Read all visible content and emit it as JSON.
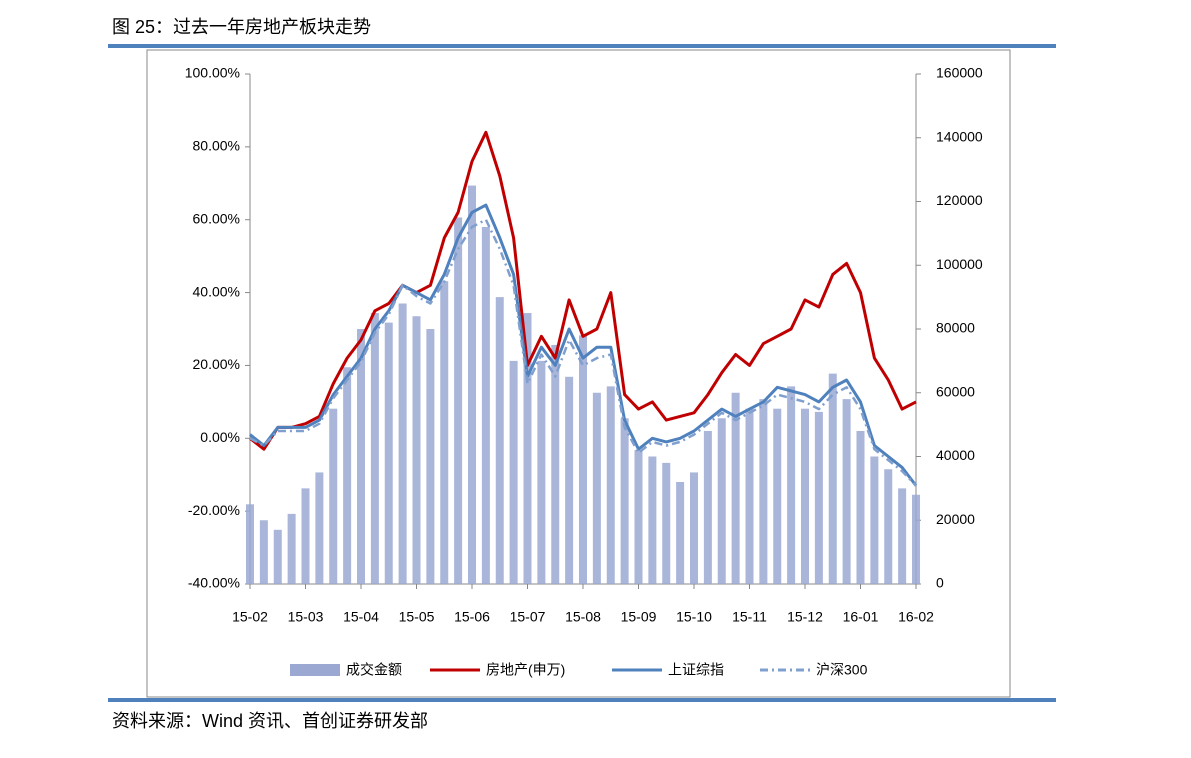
{
  "chart_data": {
    "type": "combo",
    "title": "图 25：过去一年房地产板块走势",
    "source": "资料来源：Wind 资讯、首创证券研发部",
    "categories": [
      "15-02",
      null,
      null,
      null,
      "15-03",
      null,
      null,
      null,
      "15-04",
      null,
      null,
      null,
      "15-05",
      null,
      null,
      null,
      "15-06",
      null,
      null,
      null,
      "15-07",
      null,
      null,
      null,
      "15-08",
      null,
      null,
      null,
      "15-09",
      null,
      null,
      null,
      "15-10",
      null,
      null,
      null,
      "15-11",
      null,
      null,
      null,
      "15-12",
      null,
      null,
      null,
      "16-01",
      null,
      null,
      null,
      "16-02"
    ],
    "series": [
      {
        "name": "成交金额",
        "type": "bar",
        "axis": "y2",
        "color": "#9aa8d2",
        "values": [
          25000,
          20000,
          17000,
          22000,
          30000,
          35000,
          55000,
          68000,
          80000,
          85000,
          82000,
          88000,
          84000,
          80000,
          95000,
          115000,
          125000,
          112000,
          90000,
          70000,
          85000,
          70000,
          75000,
          65000,
          78000,
          60000,
          62000,
          52000,
          42000,
          40000,
          38000,
          32000,
          35000,
          48000,
          52000,
          60000,
          55000,
          58000,
          55000,
          62000,
          55000,
          54000,
          66000,
          58000,
          48000,
          40000,
          36000,
          30000,
          28000
        ]
      },
      {
        "name": "房地产(申万)",
        "type": "line",
        "color": "#c00000",
        "line_style": "solid",
        "values": [
          0,
          -3,
          3,
          3,
          4,
          6,
          15,
          22,
          27,
          35,
          37,
          42,
          40,
          42,
          55,
          62,
          76,
          84,
          72,
          55,
          20,
          28,
          22,
          38,
          28,
          30,
          40,
          12,
          8,
          10,
          5,
          6,
          7,
          12,
          18,
          23,
          20,
          26,
          28,
          30,
          38,
          36,
          45,
          48,
          40,
          22,
          16,
          8,
          10
        ]
      },
      {
        "name": "上证综指",
        "type": "line",
        "color": "#4f81bd",
        "line_style": "solid",
        "values": [
          1,
          -2,
          3,
          3,
          3,
          5,
          12,
          17,
          22,
          30,
          35,
          42,
          40,
          38,
          45,
          55,
          62,
          64,
          55,
          45,
          17,
          25,
          20,
          30,
          22,
          25,
          25,
          5,
          -3,
          0,
          -1,
          0,
          2,
          5,
          8,
          6,
          8,
          10,
          14,
          13,
          12,
          10,
          14,
          16,
          10,
          -2,
          -5,
          -8,
          -13
        ]
      },
      {
        "name": "沪深300",
        "type": "line",
        "color": "#7f9fcf",
        "line_style": "dashdot",
        "values": [
          0,
          -2,
          2,
          2,
          2,
          4,
          11,
          16,
          21,
          29,
          34,
          42,
          39,
          37,
          43,
          52,
          58,
          60,
          52,
          42,
          15,
          23,
          17,
          27,
          20,
          22,
          23,
          3,
          -4,
          -1,
          -2,
          -1,
          1,
          4,
          7,
          5,
          7,
          9,
          12,
          11,
          10,
          8,
          12,
          14,
          8,
          -3,
          -6,
          -9,
          -13
        ]
      }
    ],
    "ylim": [
      -40,
      100
    ],
    "yticks": [
      {
        "value": -40,
        "label": "-40.00%"
      },
      {
        "value": -20,
        "label": "-20.00%"
      },
      {
        "value": 0,
        "label": "0.00%"
      },
      {
        "value": 20,
        "label": "20.00%"
      },
      {
        "value": 40,
        "label": "40.00%"
      },
      {
        "value": 60,
        "label": "60.00%"
      },
      {
        "value": 80,
        "label": "80.00%"
      },
      {
        "value": 100,
        "label": "100.00%"
      }
    ],
    "y2lim": [
      0,
      160000
    ],
    "y2ticks": [
      0,
      20000,
      40000,
      60000,
      80000,
      100000,
      120000,
      140000,
      160000
    ],
    "grid": false,
    "legend": "bottom"
  }
}
